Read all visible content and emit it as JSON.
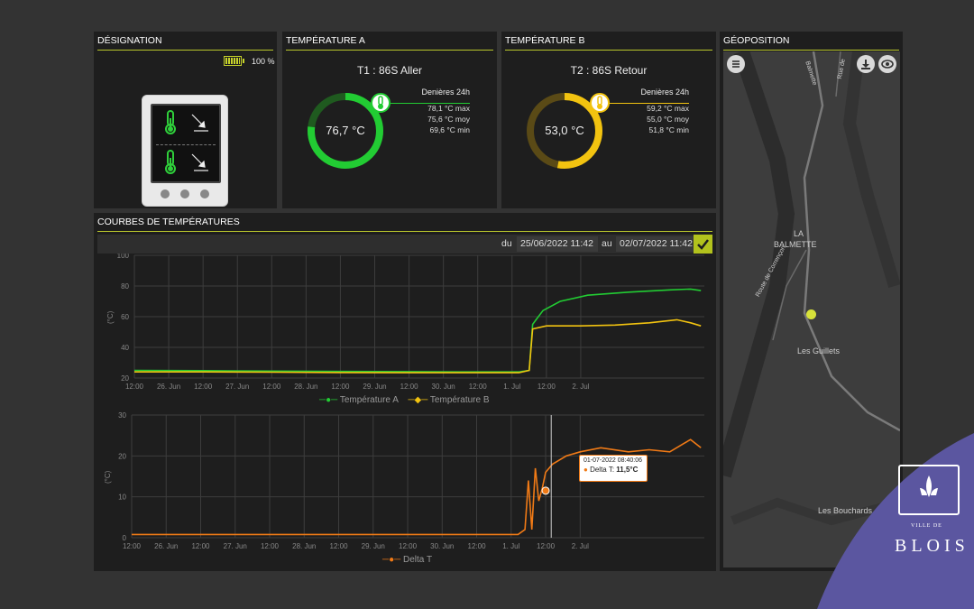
{
  "designation": {
    "title": "DÉSIGNATION",
    "battery": "100 %"
  },
  "temp_a": {
    "title": "TEMPÉRATURE A",
    "sensor": "T1 : 86S Aller",
    "value": "76,7 °C",
    "gauge_fraction": 0.767,
    "stats_header": "Denières 24h",
    "max": "78,1 °C max",
    "moy": "75,6 °C moy",
    "min": "69,6 °C min",
    "color": "#22cc33"
  },
  "temp_b": {
    "title": "TEMPÉRATURE B",
    "sensor": "T2 : 86S Retour",
    "value": "53,0 °C",
    "gauge_fraction": 0.53,
    "stats_header": "Denières 24h",
    "max": "59,2 °C max",
    "moy": "55,0 °C moy",
    "min": "51,8 °C min",
    "color": "#f2c310"
  },
  "curves": {
    "title": "COURBES DE TEMPÉRATURES",
    "from_label": "du",
    "from_value": "25/06/2022 11:42",
    "to_label": "au",
    "to_value": "02/07/2022 11:42"
  },
  "geo": {
    "title": "GÉOPOSITION",
    "labels": [
      "LA",
      "BALMETTE",
      "Les Guillets",
      "Les Bouchards",
      "Route de Corrençon",
      "Balmette",
      "Rue de"
    ]
  },
  "brand": {
    "small": "VILLE DE",
    "name": "BLOIS"
  },
  "chart_data": [
    {
      "type": "line",
      "ylabel": "(°C)",
      "ylim": [
        20,
        100
      ],
      "yticks": [
        20,
        40,
        60,
        80,
        100
      ],
      "xticks": [
        "12:00",
        "26. Jun",
        "12:00",
        "27. Jun",
        "12:00",
        "28. Jun",
        "12:00",
        "29. Jun",
        "12:00",
        "30. Jun",
        "12:00",
        "1. Jul",
        "12:00",
        "2. Jul"
      ],
      "x_domain_ticks": [
        0,
        7
      ],
      "legend": "bottom",
      "grid": true,
      "series": [
        {
          "name": "Température A",
          "color": "#22cc33",
          "points": [
            [
              0,
              25
            ],
            [
              1,
              24.8
            ],
            [
              2,
              24.5
            ],
            [
              3,
              24.3
            ],
            [
              4,
              24.2
            ],
            [
              5,
              24
            ],
            [
              5.6,
              24
            ],
            [
              5.75,
              25
            ],
            [
              5.8,
              55
            ],
            [
              5.85,
              58
            ],
            [
              5.95,
              64
            ],
            [
              6.2,
              70
            ],
            [
              6.6,
              74
            ],
            [
              7.2,
              76
            ],
            [
              7.8,
              77.5
            ],
            [
              8.1,
              78
            ],
            [
              8.25,
              77
            ]
          ]
        },
        {
          "name": "Température B",
          "color": "#f2c310",
          "points": [
            [
              0,
              24
            ],
            [
              1,
              24
            ],
            [
              2,
              23.8
            ],
            [
              3,
              23.6
            ],
            [
              4,
              23.5
            ],
            [
              5,
              23.5
            ],
            [
              5.6,
              23.5
            ],
            [
              5.75,
              25
            ],
            [
              5.8,
              52
            ],
            [
              6.0,
              54
            ],
            [
              6.5,
              54
            ],
            [
              7.0,
              54.5
            ],
            [
              7.5,
              56
            ],
            [
              7.9,
              58
            ],
            [
              8.1,
              56
            ],
            [
              8.25,
              54
            ]
          ]
        }
      ]
    },
    {
      "type": "line",
      "ylabel": "(°C)",
      "ylim": [
        0,
        30
      ],
      "yticks": [
        0,
        10,
        20,
        30
      ],
      "xticks": [
        "12:00",
        "26. Jun",
        "12:00",
        "27. Jun",
        "12:00",
        "28. Jun",
        "12:00",
        "29. Jun",
        "12:00",
        "30. Jun",
        "12:00",
        "1. Jul",
        "12:00",
        "2. Jul"
      ],
      "legend": "bottom",
      "grid": true,
      "series": [
        {
          "name": "Delta T",
          "color": "#f07a16",
          "points": [
            [
              0,
              0.8
            ],
            [
              1,
              0.8
            ],
            [
              2,
              0.8
            ],
            [
              3,
              0.8
            ],
            [
              4,
              0.8
            ],
            [
              5,
              0.8
            ],
            [
              5.6,
              0.8
            ],
            [
              5.7,
              2
            ],
            [
              5.75,
              14
            ],
            [
              5.8,
              2
            ],
            [
              5.85,
              17
            ],
            [
              5.9,
              9
            ],
            [
              5.95,
              12
            ],
            [
              6.0,
              16
            ],
            [
              6.1,
              18
            ],
            [
              6.3,
              20
            ],
            [
              6.5,
              21
            ],
            [
              6.8,
              22
            ],
            [
              7.2,
              21
            ],
            [
              7.5,
              21.5
            ],
            [
              7.8,
              21
            ],
            [
              8.0,
              23
            ],
            [
              8.1,
              24
            ],
            [
              8.25,
              22
            ]
          ]
        }
      ],
      "tooltip": {
        "date": "01-07-2022 08:40:06",
        "label": "Delta T: ",
        "value": "11,5°C"
      }
    }
  ]
}
